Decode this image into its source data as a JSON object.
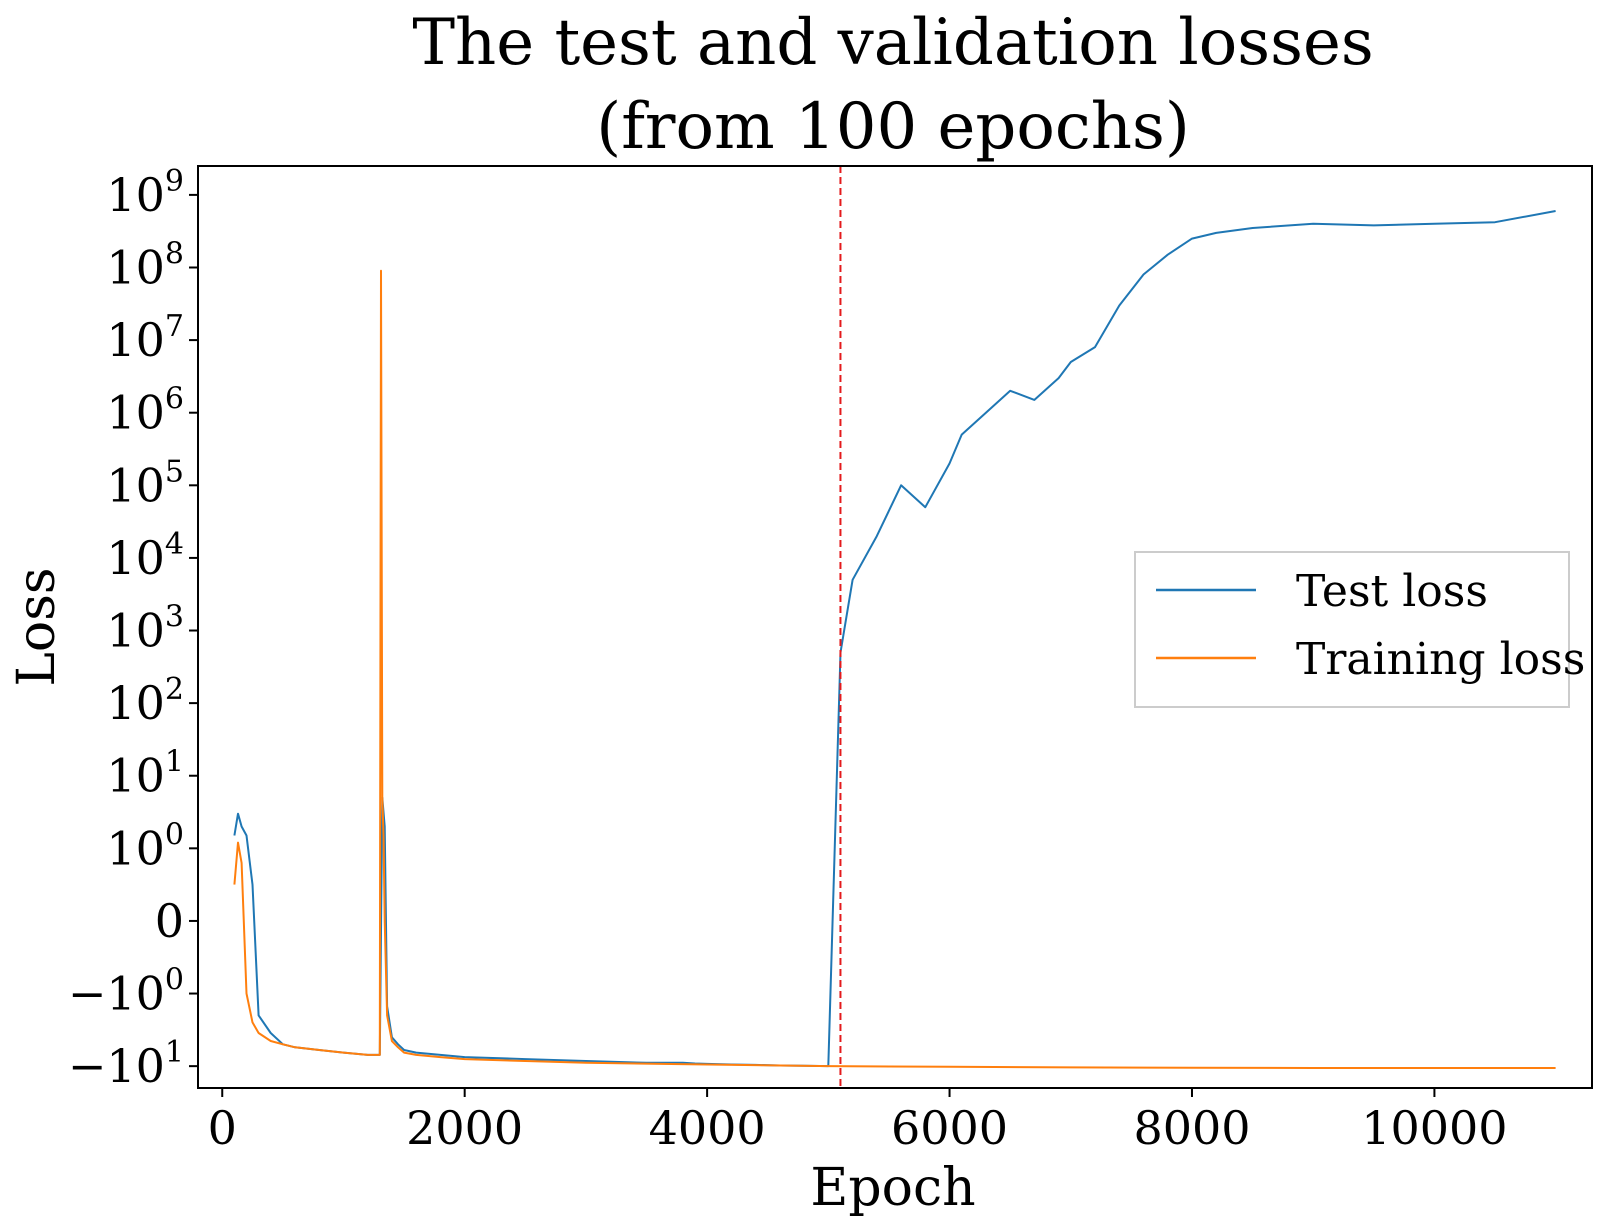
{
  "chart_data": {
    "type": "line",
    "title": "The test and validation losses",
    "subtitle": "(from 100 epochs)",
    "xlabel": "Epoch",
    "ylabel": "Loss",
    "xlim": [
      -200,
      11300
    ],
    "x_ticks": [
      {
        "value": 0,
        "label": "0"
      },
      {
        "value": 2000,
        "label": "2000"
      },
      {
        "value": 4000,
        "label": "4000"
      },
      {
        "value": 6000,
        "label": "6000"
      },
      {
        "value": 8000,
        "label": "8000"
      },
      {
        "value": 10000,
        "label": "10000"
      }
    ],
    "y_scale": "symlog",
    "y_linthresh": 1,
    "ylim": [
      -20,
      2500000000
    ],
    "y_ticks": [
      {
        "value": 1000000000,
        "base": "10",
        "exp": "9"
      },
      {
        "value": 100000000,
        "base": "10",
        "exp": "8"
      },
      {
        "value": 10000000,
        "base": "10",
        "exp": "7"
      },
      {
        "value": 1000000,
        "base": "10",
        "exp": "6"
      },
      {
        "value": 100000,
        "base": "10",
        "exp": "5"
      },
      {
        "value": 10000,
        "base": "10",
        "exp": "4"
      },
      {
        "value": 1000,
        "base": "10",
        "exp": "3"
      },
      {
        "value": 100,
        "base": "10",
        "exp": "2"
      },
      {
        "value": 10,
        "base": "10",
        "exp": "1"
      },
      {
        "value": 1,
        "base": "10",
        "exp": "0"
      },
      {
        "value": 0,
        "base": "0",
        "exp": ""
      },
      {
        "value": -1,
        "base": "−10",
        "exp": "0"
      },
      {
        "value": -10,
        "base": "−10",
        "exp": "1"
      }
    ],
    "grid": false,
    "legend_position": "center-right",
    "vline": {
      "x": 5100,
      "color": "#e41a1c",
      "style": "dashed"
    },
    "series": [
      {
        "name": "Test loss",
        "color": "#1f77b4",
        "x": [
          100,
          130,
          160,
          200,
          250,
          300,
          400,
          500,
          600,
          800,
          1000,
          1200,
          1300,
          1320,
          1340,
          1360,
          1400,
          1450,
          1500,
          1600,
          1800,
          2000,
          2500,
          3000,
          3500,
          3800,
          3900,
          4000,
          4200,
          4400,
          4600,
          4800,
          5000,
          5100,
          5200,
          5400,
          5600,
          5800,
          6000,
          6100,
          6300,
          6500,
          6700,
          6900,
          7000,
          7200,
          7400,
          7600,
          7800,
          8000,
          8200,
          8500,
          9000,
          9500,
          10000,
          10500,
          11000
        ],
        "y": [
          1.5,
          3.0,
          2.0,
          1.5,
          0.5,
          -2.0,
          -3.5,
          -5.0,
          -5.5,
          -6.0,
          -6.5,
          -7.0,
          -7.0,
          5.0,
          2.0,
          -1.5,
          -4.0,
          -5.0,
          -6.0,
          -6.5,
          -7.0,
          -7.5,
          -8.0,
          -8.5,
          -9.0,
          -9.0,
          -9.2,
          -9.3,
          -9.5,
          -9.6,
          -9.8,
          -9.9,
          -10.0,
          500,
          5000,
          20000,
          100000,
          50000,
          200000,
          500000,
          1000000,
          2000000,
          1500000,
          3000000,
          5000000,
          8000000,
          30000000,
          80000000,
          150000000,
          250000000,
          300000000,
          350000000,
          400000000,
          380000000,
          400000000,
          420000000,
          600000000
        ]
      },
      {
        "name": "Training loss",
        "color": "#ff7f0e",
        "x": [
          100,
          130,
          160,
          200,
          250,
          300,
          400,
          500,
          600,
          800,
          1000,
          1200,
          1300,
          1310,
          1320,
          1330,
          1340,
          1360,
          1400,
          1450,
          1500,
          1600,
          1800,
          2000,
          2500,
          3000,
          4000,
          5000,
          6000,
          7000,
          8000,
          9000,
          10000,
          11000
        ],
        "y": [
          0.5,
          1.2,
          0.8,
          -1.0,
          -2.5,
          -3.5,
          -4.5,
          -5.0,
          -5.5,
          -6.0,
          -6.5,
          -7.0,
          -7.0,
          90000000,
          5.0,
          1.5,
          0.0,
          -2.0,
          -4.5,
          -5.5,
          -6.5,
          -7.0,
          -7.5,
          -8.0,
          -8.5,
          -9.0,
          -9.5,
          -10.0,
          -10.2,
          -10.4,
          -10.5,
          -10.6,
          -10.6,
          -10.6
        ]
      }
    ]
  }
}
